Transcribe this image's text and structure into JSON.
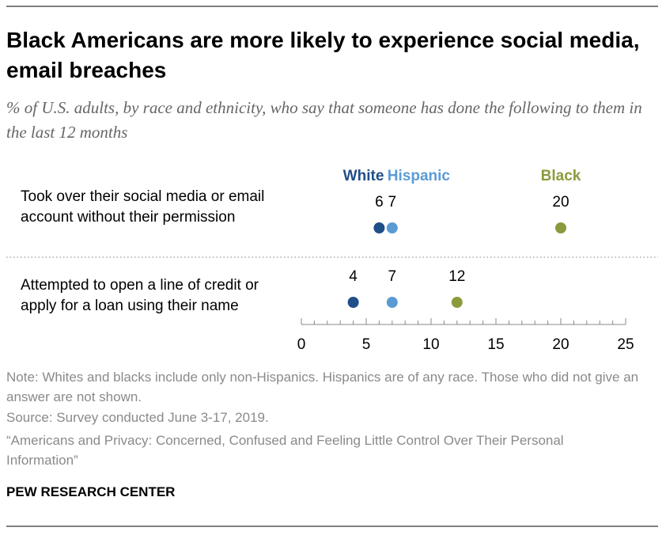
{
  "chart_data": {
    "type": "dot",
    "title": "Black Americans are more likely to experience social media, email breaches",
    "subtitle": "% of U.S. adults, by race and ethnicity, who say that someone has done the following to them in the last 12 months",
    "categories": [
      "Took over their social media or email account without their permission",
      "Attempted to open a line of credit or apply for a loan using their name"
    ],
    "series": [
      {
        "name": "White",
        "color": "#1f4e89",
        "values": [
          6,
          4
        ]
      },
      {
        "name": "Hispanic",
        "color": "#5b9bd5",
        "values": [
          7,
          7
        ]
      },
      {
        "name": "Black",
        "color": "#8c9a3e",
        "values": [
          20,
          12
        ]
      }
    ],
    "xlim": [
      0,
      25
    ],
    "xticks": [
      0,
      5,
      10,
      15,
      20,
      25
    ],
    "xminorticks": [
      0,
      1,
      2,
      3,
      4,
      5,
      6,
      7,
      8,
      9,
      10,
      11,
      12,
      13,
      14,
      15,
      16,
      17,
      18,
      19,
      20,
      21,
      22,
      23,
      24,
      25
    ],
    "note": "Note: Whites and blacks include only non-Hispanics. Hispanics are of any race. Those who did not give an answer are not shown.",
    "source": "Source: Survey conducted June 3-17, 2019.",
    "report": "“Americans and Privacy: Concerned, Confused and Feeling Little Control Over Their Personal Information”",
    "credit": "PEW RESEARCH CENTER"
  }
}
